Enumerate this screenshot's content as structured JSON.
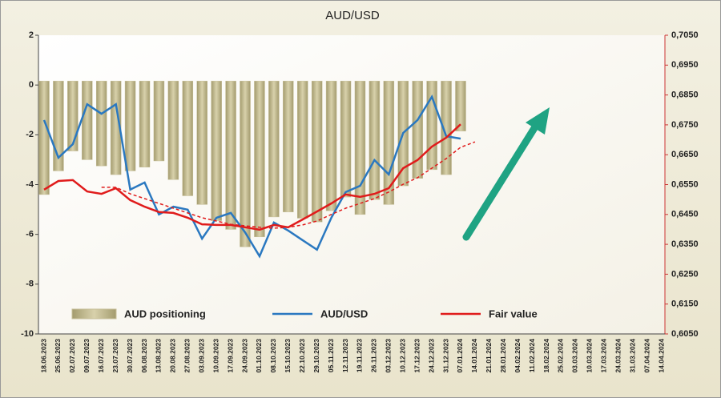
{
  "chart_data": {
    "type": "bar",
    "title": "AUD/USD",
    "categories": [
      "18.06.2023",
      "25.06.2023",
      "02.07.2023",
      "09.07.2023",
      "16.07.2023",
      "23.07.2023",
      "30.07.2023",
      "06.08.2023",
      "13.08.2023",
      "20.08.2023",
      "27.08.2023",
      "03.09.2023",
      "10.09.2023",
      "17.09.2023",
      "24.09.2023",
      "01.10.2023",
      "08.10.2023",
      "15.10.2023",
      "22.10.2023",
      "29.10.2023",
      "05.11.2023",
      "12.11.2023",
      "19.11.2023",
      "26.11.2023",
      "03.12.2023",
      "10.12.2023",
      "17.12.2023",
      "24.12.2023",
      "31.12.2023",
      "07.01.2024",
      "14.01.2024",
      "21.01.2024",
      "28.01.2024",
      "04.02.2024",
      "11.02.2024",
      "18.02.2024",
      "25.02.2024",
      "03.03.2024",
      "10.03.2024",
      "17.03.2024",
      "24.03.2024",
      "31.03.2024",
      "07.04.2024",
      "14.04.2024"
    ],
    "series": [
      {
        "name": "AUD positioning",
        "style": "bar",
        "color": "#c8c09a",
        "values": [
          -4.4,
          -3.45,
          -2.65,
          -3.0,
          -3.25,
          -3.6,
          -3.45,
          -3.3,
          -3.05,
          -3.8,
          -4.45,
          -4.8,
          -5.45,
          -5.8,
          -6.5,
          -6.1,
          -5.3,
          -5.1,
          -5.35,
          -5.5,
          -5.05,
          -4.5,
          -5.2,
          -4.6,
          -4.8,
          -4.05,
          -3.75,
          -3.4,
          -3.6,
          -1.85,
          null,
          null,
          null,
          null,
          null,
          null,
          null,
          null,
          null,
          null,
          null,
          null,
          null,
          null
        ]
      },
      {
        "name": "AUD/USD",
        "style": "line",
        "axis": "y2",
        "color": "#2a78c0",
        "values": [
          0.6766,
          0.664,
          0.6685,
          0.6819,
          0.6787,
          0.6819,
          0.6533,
          0.6557,
          0.645,
          0.6476,
          0.6466,
          0.6369,
          0.6439,
          0.6455,
          0.639,
          0.631,
          0.6423,
          0.6396,
          0.6364,
          0.6332,
          0.6439,
          0.6525,
          0.6546,
          0.6632,
          0.6584,
          0.6723,
          0.6766,
          0.6844,
          0.6712,
          0.6704,
          null,
          null,
          null,
          null,
          null,
          null,
          null,
          null,
          null,
          null,
          null,
          null,
          null,
          null
        ]
      },
      {
        "name": "Fair value",
        "style": "line",
        "axis": "y2",
        "color": "#e01b1b",
        "values": [
          0.6533,
          0.6562,
          0.6565,
          0.6527,
          0.6519,
          0.6538,
          0.6498,
          0.6476,
          0.6458,
          0.6455,
          0.6439,
          0.6417,
          0.6415,
          0.6415,
          0.6407,
          0.6399,
          0.6415,
          0.6407,
          0.6433,
          0.646,
          0.6487,
          0.6517,
          0.6509,
          0.6519,
          0.6538,
          0.6605,
          0.6632,
          0.6677,
          0.6707,
          0.6752,
          null,
          null,
          null,
          null,
          null,
          null,
          null,
          null,
          null,
          null,
          null,
          null,
          null,
          null
        ]
      },
      {
        "style": "line",
        "dashed": true,
        "axis": "y2",
        "color": "#e01b1b",
        "values": [
          null,
          null,
          null,
          null,
          0.6541,
          0.6541,
          0.6519,
          0.6503,
          0.6487,
          0.6471,
          0.6455,
          0.6439,
          0.6428,
          0.6417,
          0.6412,
          0.6407,
          0.6404,
          0.6407,
          0.6415,
          0.6428,
          0.645,
          0.6471,
          0.6487,
          0.6503,
          0.6525,
          0.6551,
          0.6573,
          0.6605,
          0.6637,
          0.6675,
          0.6693,
          null,
          null,
          null,
          null,
          null,
          null,
          null,
          null,
          null,
          null,
          null,
          null,
          null
        ]
      }
    ],
    "ylim": [
      -10,
      2
    ],
    "yticks": [
      -10,
      -8,
      -6,
      -4,
      -2,
      0,
      2
    ],
    "y2lim": [
      0.605,
      0.705
    ],
    "y2ticks": [
      {
        "value": 0.605,
        "label": "0,6050"
      },
      {
        "value": 0.615,
        "label": "0,6150"
      },
      {
        "value": 0.625,
        "label": "0,6250"
      },
      {
        "value": 0.635,
        "label": "0,6350"
      },
      {
        "value": 0.645,
        "label": "0,6450"
      },
      {
        "value": 0.655,
        "label": "0,6550"
      },
      {
        "value": 0.665,
        "label": "0,6650"
      },
      {
        "value": 0.675,
        "label": "0,6750"
      },
      {
        "value": 0.685,
        "label": "0,6850"
      },
      {
        "value": 0.695,
        "label": "0,6950"
      },
      {
        "value": 0.705,
        "label": "0,7050"
      }
    ],
    "grid": false
  }
}
